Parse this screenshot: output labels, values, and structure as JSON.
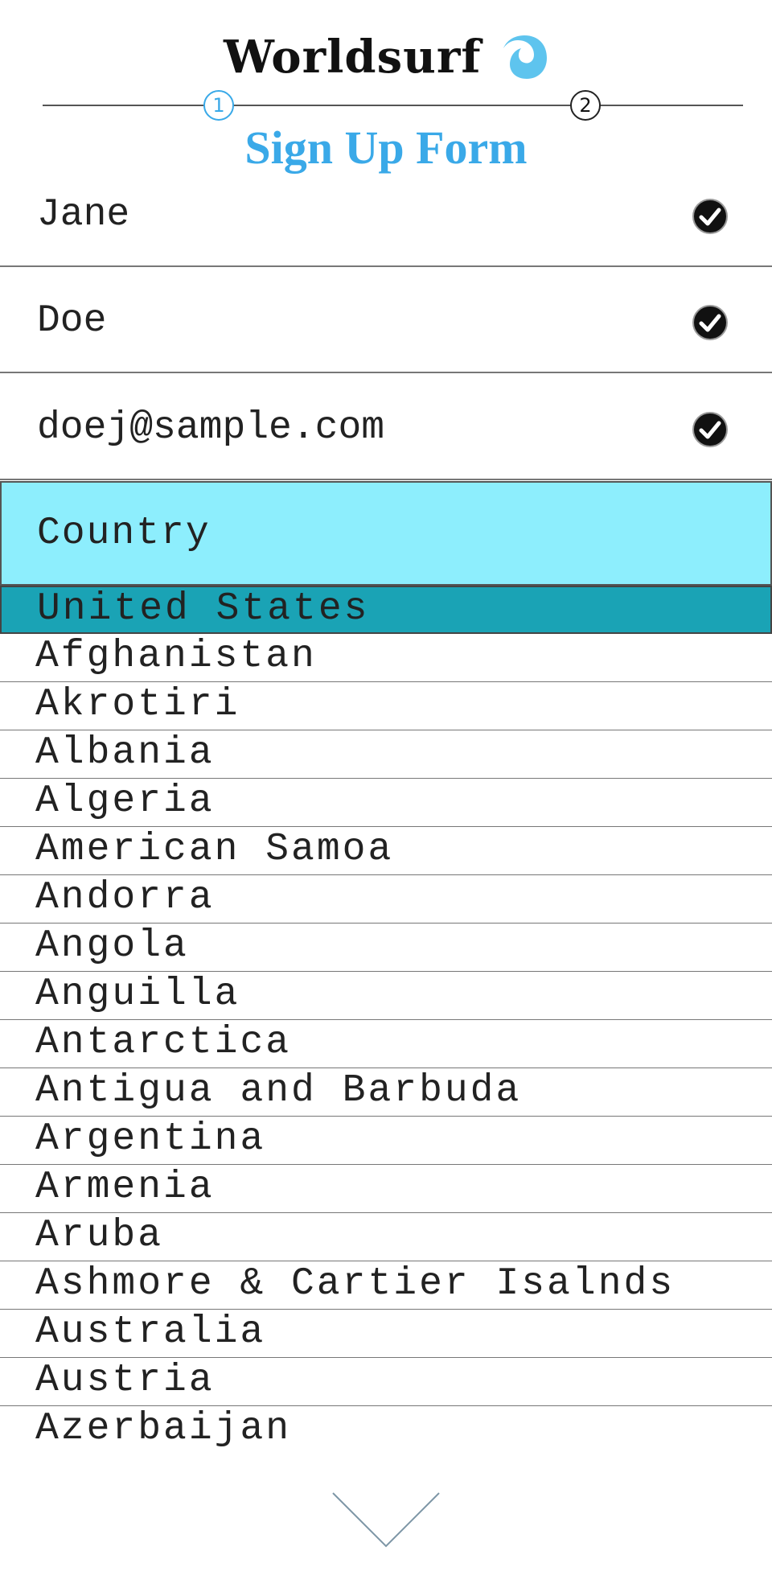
{
  "brand": {
    "name": "Worldsurf",
    "logo_icon": "wave-drop-icon",
    "logo_color": "#5ec4ee"
  },
  "stepper": {
    "steps": [
      {
        "label": "1",
        "state": "current"
      },
      {
        "label": "2",
        "state": "upcoming"
      }
    ]
  },
  "form": {
    "title": "Sign Up Form",
    "fields": [
      {
        "name": "first-name",
        "value": "Jane",
        "valid": true
      },
      {
        "name": "last-name",
        "value": "Doe",
        "valid": true
      },
      {
        "name": "email",
        "value": "doej@sample.com",
        "valid": true
      }
    ],
    "country": {
      "label": "Country",
      "selected": "United States",
      "options": [
        "United States",
        "Afghanistan",
        "Akrotiri",
        "Albania",
        "Algeria",
        "American Samoa",
        "Andorra",
        "Angola",
        "Anguilla",
        "Antarctica",
        "Antigua and Barbuda",
        "Argentina",
        "Armenia",
        "Aruba",
        "Ashmore & Cartier Isalnds",
        "Australia",
        "Austria",
        "Azerbaijan"
      ]
    }
  },
  "colors": {
    "accent": "#3aa9e8",
    "country_bg": "#8deefd",
    "selected_bg": "#1aa3b5"
  },
  "scroll": {
    "icon": "chevron-down-icon"
  }
}
